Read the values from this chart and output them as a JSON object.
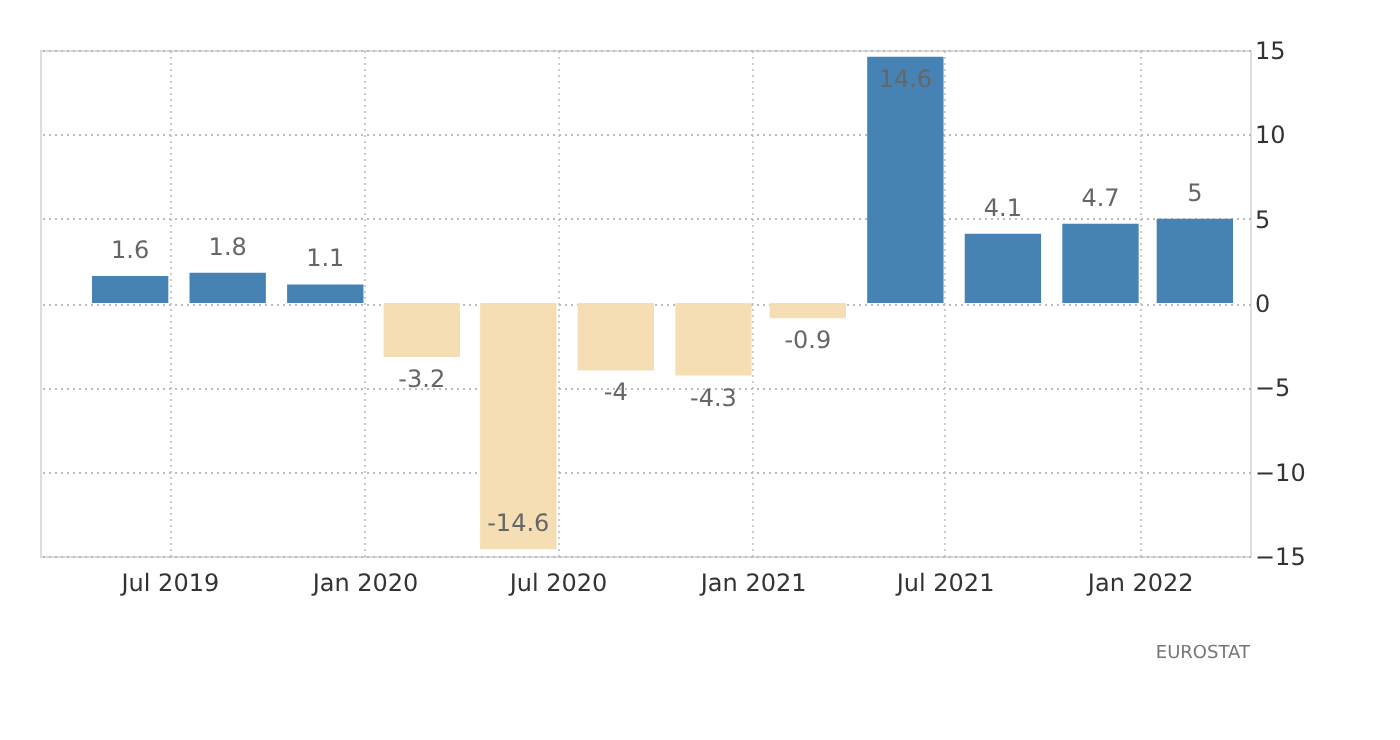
{
  "chart_data": {
    "type": "bar",
    "x": [
      "2019-05-25",
      "2019-08-25",
      "2019-11-25",
      "2020-02-24",
      "2020-05-25",
      "2020-08-25",
      "2020-11-25",
      "2021-02-22",
      "2021-05-25",
      "2021-08-25",
      "2021-11-25",
      "2022-02-22"
    ],
    "values": [
      1.6,
      1.8,
      1.1,
      -3.2,
      -14.6,
      -4,
      -4.3,
      -0.9,
      14.6,
      4.1,
      4.7,
      5
    ],
    "colors": [
      "#4682b4",
      "#4682b4",
      "#4682b4",
      "#f5deb3",
      "#f5deb3",
      "#f5deb3",
      "#f5deb3",
      "#f5deb3",
      "#4682b4",
      "#4682b4",
      "#4682b4",
      "#4682b4"
    ],
    "data_labels": true,
    "xlim": [
      "2019-03-01",
      "2022-04-15"
    ],
    "xticks": [
      {
        "value": "2019-07-01",
        "label": "Jul 2019"
      },
      {
        "value": "2020-01-01",
        "label": "Jan 2020"
      },
      {
        "value": "2020-07-01",
        "label": "Jul 2020"
      },
      {
        "value": "2021-01-01",
        "label": "Jan 2021"
      },
      {
        "value": "2021-07-01",
        "label": "Jul 2021"
      },
      {
        "value": "2022-01-01",
        "label": "Jan 2022"
      }
    ],
    "ylim": [
      -15,
      15
    ],
    "yticks": [
      -15,
      -10,
      -5,
      0,
      5,
      10,
      15
    ],
    "grid": true,
    "annotations": [
      "EUROSTAT"
    ]
  }
}
